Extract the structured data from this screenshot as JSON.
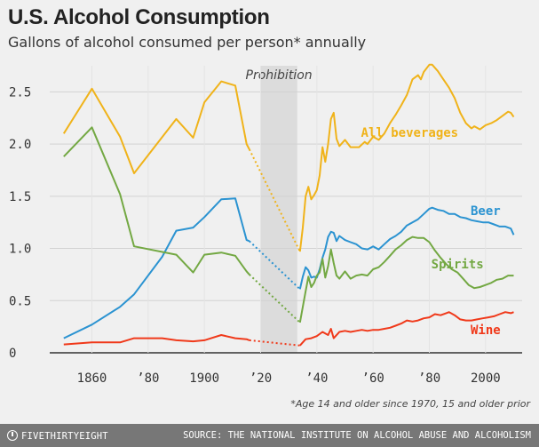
{
  "header": {
    "title": "U.S. Alcohol Consumption",
    "subtitle": "Gallons of alcohol consumed per person* annually"
  },
  "footnote": "*Age 14 and older since 1970, 15 and older prior",
  "footer": {
    "brand": "FIVETHIRTYEIGHT",
    "source": "SOURCE: THE NATIONAL INSTITUTE ON ALCOHOL ABUSE AND ALCOHOLISM"
  },
  "chart_data": {
    "type": "line",
    "title": "U.S. Alcohol Consumption",
    "subtitle": "Gallons of alcohol consumed per person* annually",
    "xlim": [
      1845,
      2013
    ],
    "ylim": [
      0,
      2.75
    ],
    "x_ticks": [
      {
        "value": 1860,
        "label": "1860"
      },
      {
        "value": 1880,
        "label": "’80"
      },
      {
        "value": 1900,
        "label": "1900"
      },
      {
        "value": 1920,
        "label": "’20"
      },
      {
        "value": 1940,
        "label": "’40"
      },
      {
        "value": 1960,
        "label": "’60"
      },
      {
        "value": 1980,
        "label": "’80"
      },
      {
        "value": 2000,
        "label": "2000"
      }
    ],
    "y_ticks": [
      {
        "value": 0,
        "label": "0"
      },
      {
        "value": 0.5,
        "label": "0.5"
      },
      {
        "value": 1.0,
        "label": "1.0"
      },
      {
        "value": 1.5,
        "label": "1.5"
      },
      {
        "value": 2.0,
        "label": "2.0"
      },
      {
        "value": 2.5,
        "label": "2.5"
      }
    ],
    "grid": "horizontal",
    "annotation": {
      "label": "Prohibition",
      "start": 1920,
      "end": 1933,
      "color": "#dcdcdc"
    },
    "series": [
      {
        "name": "All beverages",
        "color": "#f0b31a",
        "before": [
          [
            1850,
            2.1
          ],
          [
            1860,
            2.53
          ],
          [
            1870,
            2.07
          ],
          [
            1875,
            1.72
          ],
          [
            1890,
            2.24
          ],
          [
            1896,
            2.06
          ],
          [
            1900,
            2.4
          ],
          [
            1906,
            2.6
          ],
          [
            1911,
            2.56
          ],
          [
            1915,
            2.0
          ],
          [
            1916,
            1.95
          ]
        ],
        "gap": [
          [
            1916,
            1.95
          ],
          [
            1934,
            0.97
          ]
        ],
        "after": [
          [
            1934,
            0.97
          ],
          [
            1935,
            1.2
          ],
          [
            1936,
            1.5
          ],
          [
            1937,
            1.59
          ],
          [
            1938,
            1.47
          ],
          [
            1939,
            1.51
          ],
          [
            1940,
            1.56
          ],
          [
            1941,
            1.7
          ],
          [
            1942,
            1.97
          ],
          [
            1943,
            1.83
          ],
          [
            1944,
            2.0
          ],
          [
            1945,
            2.24
          ],
          [
            1946,
            2.3
          ],
          [
            1947,
            2.05
          ],
          [
            1948,
            1.98
          ],
          [
            1950,
            2.04
          ],
          [
            1952,
            1.97
          ],
          [
            1955,
            1.97
          ],
          [
            1957,
            2.02
          ],
          [
            1958,
            2.0
          ],
          [
            1960,
            2.07
          ],
          [
            1962,
            2.04
          ],
          [
            1964,
            2.1
          ],
          [
            1966,
            2.2
          ],
          [
            1968,
            2.28
          ],
          [
            1970,
            2.37
          ],
          [
            1972,
            2.47
          ],
          [
            1974,
            2.62
          ],
          [
            1976,
            2.66
          ],
          [
            1977,
            2.62
          ],
          [
            1978,
            2.69
          ],
          [
            1980,
            2.76
          ],
          [
            1981,
            2.76
          ],
          [
            1983,
            2.7
          ],
          [
            1985,
            2.62
          ],
          [
            1987,
            2.54
          ],
          [
            1989,
            2.44
          ],
          [
            1991,
            2.3
          ],
          [
            1993,
            2.2
          ],
          [
            1995,
            2.15
          ],
          [
            1996,
            2.17
          ],
          [
            1998,
            2.14
          ],
          [
            2000,
            2.18
          ],
          [
            2002,
            2.2
          ],
          [
            2004,
            2.23
          ],
          [
            2006,
            2.27
          ],
          [
            2008,
            2.31
          ],
          [
            2009,
            2.3
          ],
          [
            2010,
            2.26
          ]
        ]
      },
      {
        "name": "Beer",
        "color": "#2b93d1",
        "before": [
          [
            1850,
            0.14
          ],
          [
            1860,
            0.27
          ],
          [
            1870,
            0.44
          ],
          [
            1875,
            0.56
          ],
          [
            1885,
            0.92
          ],
          [
            1890,
            1.17
          ],
          [
            1896,
            1.2
          ],
          [
            1900,
            1.3
          ],
          [
            1906,
            1.47
          ],
          [
            1911,
            1.48
          ],
          [
            1915,
            1.08
          ],
          [
            1916,
            1.07
          ]
        ],
        "gap": [
          [
            1916,
            1.07
          ],
          [
            1934,
            0.61
          ]
        ],
        "after": [
          [
            1934,
            0.61
          ],
          [
            1935,
            0.73
          ],
          [
            1936,
            0.82
          ],
          [
            1937,
            0.79
          ],
          [
            1938,
            0.72
          ],
          [
            1939,
            0.73
          ],
          [
            1940,
            0.72
          ],
          [
            1941,
            0.8
          ],
          [
            1942,
            0.91
          ],
          [
            1943,
            0.99
          ],
          [
            1944,
            1.11
          ],
          [
            1945,
            1.16
          ],
          [
            1946,
            1.15
          ],
          [
            1947,
            1.07
          ],
          [
            1948,
            1.12
          ],
          [
            1950,
            1.08
          ],
          [
            1952,
            1.06
          ],
          [
            1954,
            1.04
          ],
          [
            1956,
            1.0
          ],
          [
            1958,
            0.99
          ],
          [
            1960,
            1.02
          ],
          [
            1962,
            0.99
          ],
          [
            1964,
            1.04
          ],
          [
            1966,
            1.09
          ],
          [
            1968,
            1.12
          ],
          [
            1970,
            1.16
          ],
          [
            1972,
            1.22
          ],
          [
            1974,
            1.25
          ],
          [
            1976,
            1.28
          ],
          [
            1978,
            1.33
          ],
          [
            1980,
            1.38
          ],
          [
            1981,
            1.39
          ],
          [
            1983,
            1.37
          ],
          [
            1985,
            1.36
          ],
          [
            1987,
            1.33
          ],
          [
            1989,
            1.33
          ],
          [
            1991,
            1.3
          ],
          [
            1993,
            1.29
          ],
          [
            1995,
            1.27
          ],
          [
            1997,
            1.26
          ],
          [
            1999,
            1.25
          ],
          [
            2001,
            1.25
          ],
          [
            2003,
            1.23
          ],
          [
            2005,
            1.21
          ],
          [
            2007,
            1.21
          ],
          [
            2009,
            1.19
          ],
          [
            2010,
            1.13
          ]
        ]
      },
      {
        "name": "Spirits",
        "color": "#73a843",
        "before": [
          [
            1850,
            1.88
          ],
          [
            1860,
            2.16
          ],
          [
            1870,
            1.52
          ],
          [
            1875,
            1.02
          ],
          [
            1890,
            0.94
          ],
          [
            1896,
            0.77
          ],
          [
            1900,
            0.94
          ],
          [
            1906,
            0.96
          ],
          [
            1911,
            0.93
          ],
          [
            1915,
            0.78
          ],
          [
            1916,
            0.75
          ]
        ],
        "gap": [
          [
            1916,
            0.75
          ],
          [
            1934,
            0.29
          ]
        ],
        "after": [
          [
            1934,
            0.29
          ],
          [
            1935,
            0.44
          ],
          [
            1936,
            0.59
          ],
          [
            1937,
            0.73
          ],
          [
            1938,
            0.63
          ],
          [
            1939,
            0.67
          ],
          [
            1940,
            0.74
          ],
          [
            1941,
            0.77
          ],
          [
            1942,
            0.9
          ],
          [
            1943,
            0.72
          ],
          [
            1944,
            0.83
          ],
          [
            1945,
            0.99
          ],
          [
            1946,
            0.86
          ],
          [
            1947,
            0.74
          ],
          [
            1948,
            0.71
          ],
          [
            1950,
            0.78
          ],
          [
            1952,
            0.71
          ],
          [
            1954,
            0.74
          ],
          [
            1956,
            0.75
          ],
          [
            1958,
            0.74
          ],
          [
            1960,
            0.8
          ],
          [
            1962,
            0.82
          ],
          [
            1964,
            0.87
          ],
          [
            1966,
            0.93
          ],
          [
            1968,
            0.99
          ],
          [
            1970,
            1.03
          ],
          [
            1972,
            1.08
          ],
          [
            1974,
            1.11
          ],
          [
            1976,
            1.1
          ],
          [
            1978,
            1.1
          ],
          [
            1980,
            1.06
          ],
          [
            1982,
            0.98
          ],
          [
            1984,
            0.91
          ],
          [
            1986,
            0.85
          ],
          [
            1988,
            0.8
          ],
          [
            1990,
            0.77
          ],
          [
            1992,
            0.71
          ],
          [
            1994,
            0.65
          ],
          [
            1996,
            0.62
          ],
          [
            1998,
            0.63
          ],
          [
            2000,
            0.65
          ],
          [
            2002,
            0.67
          ],
          [
            2004,
            0.7
          ],
          [
            2006,
            0.71
          ],
          [
            2008,
            0.74
          ],
          [
            2010,
            0.74
          ]
        ]
      },
      {
        "name": "Wine",
        "color": "#f0391a",
        "before": [
          [
            1850,
            0.08
          ],
          [
            1860,
            0.1
          ],
          [
            1870,
            0.1
          ],
          [
            1875,
            0.14
          ],
          [
            1885,
            0.14
          ],
          [
            1890,
            0.12
          ],
          [
            1896,
            0.11
          ],
          [
            1900,
            0.12
          ],
          [
            1906,
            0.17
          ],
          [
            1911,
            0.14
          ],
          [
            1915,
            0.13
          ],
          [
            1916,
            0.12
          ]
        ],
        "gap": [
          [
            1916,
            0.12
          ],
          [
            1934,
            0.07
          ]
        ],
        "after": [
          [
            1934,
            0.07
          ],
          [
            1936,
            0.13
          ],
          [
            1938,
            0.14
          ],
          [
            1940,
            0.16
          ],
          [
            1942,
            0.2
          ],
          [
            1944,
            0.17
          ],
          [
            1945,
            0.23
          ],
          [
            1946,
            0.14
          ],
          [
            1948,
            0.2
          ],
          [
            1950,
            0.21
          ],
          [
            1952,
            0.2
          ],
          [
            1954,
            0.21
          ],
          [
            1956,
            0.22
          ],
          [
            1958,
            0.21
          ],
          [
            1960,
            0.22
          ],
          [
            1962,
            0.22
          ],
          [
            1964,
            0.23
          ],
          [
            1966,
            0.24
          ],
          [
            1968,
            0.26
          ],
          [
            1970,
            0.28
          ],
          [
            1972,
            0.31
          ],
          [
            1974,
            0.3
          ],
          [
            1976,
            0.31
          ],
          [
            1978,
            0.33
          ],
          [
            1980,
            0.34
          ],
          [
            1982,
            0.37
          ],
          [
            1984,
            0.36
          ],
          [
            1986,
            0.38
          ],
          [
            1987,
            0.39
          ],
          [
            1989,
            0.36
          ],
          [
            1991,
            0.32
          ],
          [
            1993,
            0.31
          ],
          [
            1995,
            0.31
          ],
          [
            1997,
            0.32
          ],
          [
            1999,
            0.33
          ],
          [
            2001,
            0.34
          ],
          [
            2003,
            0.35
          ],
          [
            2005,
            0.37
          ],
          [
            2007,
            0.39
          ],
          [
            2009,
            0.38
          ],
          [
            2010,
            0.39
          ]
        ]
      }
    ],
    "series_labels": [
      {
        "series": "All beverages",
        "text": "All beverages",
        "x": 1973,
        "y": 2.07
      },
      {
        "series": "Beer",
        "text": "Beer",
        "x": 2000,
        "y": 1.32
      },
      {
        "series": "Spirits",
        "text": "Spirits",
        "x": 1990,
        "y": 0.81
      },
      {
        "series": "Wine",
        "text": "Wine",
        "x": 2000,
        "y": 0.18
      }
    ]
  }
}
